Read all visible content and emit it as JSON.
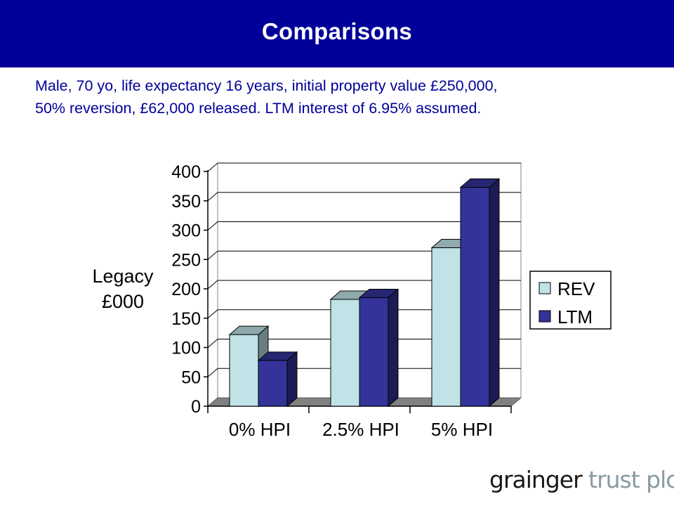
{
  "header": {
    "title": "Comparisons"
  },
  "subtitle": {
    "line1": "Male, 70 yo, life expectancy 16 years, initial property value £250,000,",
    "line2": "50% reversion, £62,000 released. LTM interest of 6.95% assumed."
  },
  "chart_data": {
    "type": "bar",
    "ylabel_lines": [
      "Legacy",
      "£000"
    ],
    "categories": [
      "0% HPI",
      "2.5% HPI",
      "5% HPI"
    ],
    "series": [
      {
        "name": "REV",
        "values": [
          122,
          182,
          270
        ],
        "color": "#bfe3e6"
      },
      {
        "name": "LTM",
        "values": [
          78,
          185,
          373
        ],
        "color": "#333399"
      }
    ],
    "yticks": [
      0,
      50,
      100,
      150,
      200,
      250,
      300,
      350,
      400
    ],
    "ylim": [
      0,
      400
    ],
    "grid": true,
    "legend_position": "right",
    "three_d": true
  },
  "logo": {
    "word1": "grainger",
    "word2": "trust plc"
  },
  "colors": {
    "header_bg": "#000099",
    "subtitle": "#000099"
  }
}
